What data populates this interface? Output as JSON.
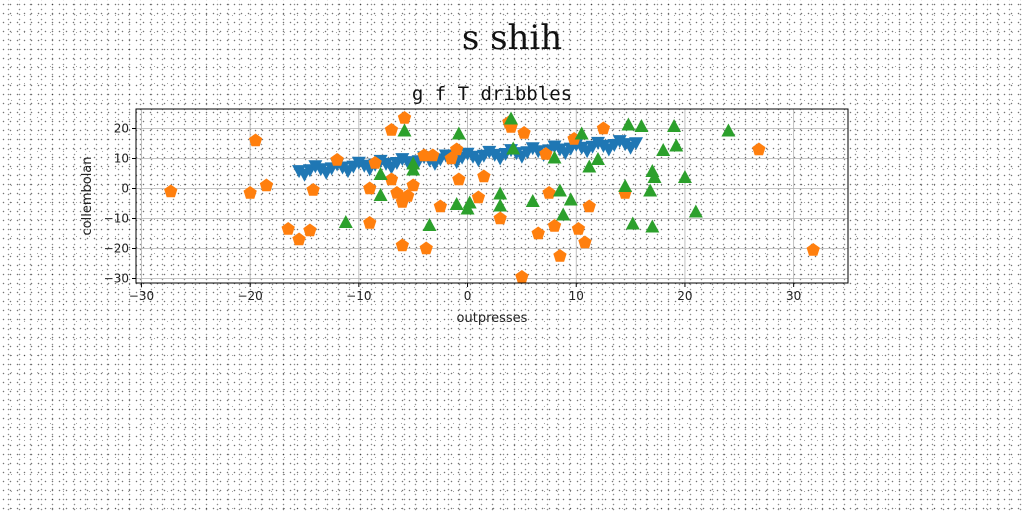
{
  "figure": {
    "suptitle": "s shih"
  },
  "chart_data": {
    "type": "scatter",
    "title": "g f T dribbles",
    "xlabel": "outpresses",
    "ylabel": "collembolan",
    "xlim": [
      -30.5,
      35
    ],
    "ylim": [
      -31.5,
      26.5
    ],
    "xticks": [
      -30,
      -20,
      -10,
      0,
      10,
      20,
      30
    ],
    "yticks": [
      -30,
      -20,
      -10,
      0,
      10,
      20
    ],
    "grid": true,
    "series": [
      {
        "marker": "triangle-down",
        "color": "#1f77b4",
        "points": [
          [
            -15.5,
            5.8
          ],
          [
            -14.5,
            6.1
          ],
          [
            -13.5,
            6.4
          ],
          [
            -12.5,
            6.7
          ],
          [
            -11.5,
            7.0
          ],
          [
            -10.5,
            7.3
          ],
          [
            -9.5,
            7.6
          ],
          [
            -8.5,
            7.9
          ],
          [
            -7.5,
            8.2
          ],
          [
            -6.5,
            8.5
          ],
          [
            -5.5,
            8.8
          ],
          [
            -4.5,
            9.1
          ],
          [
            -3.5,
            9.4
          ],
          [
            -2.5,
            9.7
          ],
          [
            -1.5,
            10.0
          ],
          [
            -0.5,
            10.3
          ],
          [
            0.5,
            10.6
          ],
          [
            1.5,
            10.9
          ],
          [
            2.5,
            11.2
          ],
          [
            3.5,
            11.5
          ],
          [
            4.5,
            11.8
          ],
          [
            5.5,
            12.1
          ],
          [
            6.5,
            12.4
          ],
          [
            7.5,
            12.7
          ],
          [
            8.5,
            13.0
          ],
          [
            9.5,
            13.3
          ],
          [
            10.5,
            13.6
          ],
          [
            11.5,
            13.9
          ],
          [
            12.5,
            14.2
          ],
          [
            13.5,
            14.5
          ],
          [
            14.5,
            14.8
          ],
          [
            15.5,
            15.1
          ],
          [
            -15.0,
            4.6
          ],
          [
            -13.0,
            5.2
          ],
          [
            -11.0,
            5.8
          ],
          [
            -9.0,
            6.4
          ],
          [
            -7.0,
            7.0
          ],
          [
            -5.0,
            7.6
          ],
          [
            -3.0,
            8.2
          ],
          [
            -1.0,
            8.8
          ],
          [
            1.0,
            9.4
          ],
          [
            3.0,
            10.0
          ],
          [
            5.0,
            10.6
          ],
          [
            7.0,
            11.2
          ],
          [
            9.0,
            11.8
          ],
          [
            11.0,
            12.4
          ],
          [
            13.0,
            13.0
          ],
          [
            15.0,
            13.6
          ],
          [
            -14.0,
            7.4
          ],
          [
            -12.0,
            8.0
          ],
          [
            -10.0,
            8.6
          ],
          [
            -8.0,
            9.2
          ],
          [
            -6.0,
            9.8
          ],
          [
            -4.0,
            10.4
          ],
          [
            -2.0,
            11.0
          ],
          [
            0.0,
            11.6
          ],
          [
            2.0,
            12.2
          ],
          [
            4.0,
            12.8
          ],
          [
            6.0,
            13.4
          ],
          [
            8.0,
            14.0
          ],
          [
            10.0,
            14.6
          ],
          [
            12.0,
            15.2
          ],
          [
            14.0,
            15.8
          ]
        ]
      },
      {
        "marker": "pentagon",
        "color": "#ff7f0e",
        "points": [
          [
            -27.3,
            -1.0
          ],
          [
            -20.0,
            -1.5
          ],
          [
            -19.5,
            16.0
          ],
          [
            -18.5,
            1.0
          ],
          [
            -16.5,
            -13.5
          ],
          [
            -15.5,
            -17.0
          ],
          [
            -14.5,
            -14.0
          ],
          [
            -14.2,
            -0.5
          ],
          [
            -12.0,
            9.5
          ],
          [
            -9.0,
            0.0
          ],
          [
            -9.0,
            -11.5
          ],
          [
            -8.5,
            8.5
          ],
          [
            -7.0,
            19.5
          ],
          [
            -7.0,
            3.0
          ],
          [
            -6.5,
            -1.5
          ],
          [
            -6.0,
            -4.5
          ],
          [
            -6.0,
            -19.0
          ],
          [
            -5.8,
            23.5
          ],
          [
            -5.5,
            -2.5
          ],
          [
            -5.0,
            1.0
          ],
          [
            -4.0,
            11.0
          ],
          [
            -3.8,
            -20.0
          ],
          [
            -3.2,
            11.0
          ],
          [
            -2.5,
            -6.0
          ],
          [
            -1.5,
            10.0
          ],
          [
            -1.0,
            13.0
          ],
          [
            -0.8,
            3.0
          ],
          [
            1.0,
            -3.0
          ],
          [
            1.5,
            4.0
          ],
          [
            3.0,
            -10.0
          ],
          [
            3.8,
            22.0
          ],
          [
            4.0,
            20.5
          ],
          [
            5.0,
            -29.5
          ],
          [
            5.2,
            18.5
          ],
          [
            6.5,
            -15.0
          ],
          [
            7.2,
            11.5
          ],
          [
            7.5,
            -1.5
          ],
          [
            8.0,
            -12.5
          ],
          [
            8.5,
            -22.5
          ],
          [
            9.8,
            16.5
          ],
          [
            10.2,
            -13.5
          ],
          [
            10.8,
            -18.0
          ],
          [
            11.2,
            -6.0
          ],
          [
            12.5,
            20.0
          ],
          [
            14.5,
            -1.5
          ],
          [
            26.8,
            13.0
          ],
          [
            31.8,
            -20.5
          ]
        ]
      },
      {
        "marker": "triangle-up",
        "color": "#2ca02c",
        "points": [
          [
            -11.2,
            -11.5
          ],
          [
            -8.0,
            4.5
          ],
          [
            -8.0,
            -2.5
          ],
          [
            -5.8,
            19.0
          ],
          [
            -5.0,
            8.0
          ],
          [
            -5.0,
            6.0
          ],
          [
            -3.5,
            -12.5
          ],
          [
            -1.0,
            -5.5
          ],
          [
            -0.8,
            18.0
          ],
          [
            0.0,
            -7.0
          ],
          [
            0.2,
            -5.0
          ],
          [
            3.0,
            -2.0
          ],
          [
            3.0,
            -6.0
          ],
          [
            4.0,
            23.0
          ],
          [
            4.2,
            13.0
          ],
          [
            6.0,
            -4.5
          ],
          [
            8.0,
            10.0
          ],
          [
            8.5,
            -1.0
          ],
          [
            8.8,
            -9.0
          ],
          [
            9.5,
            -4.0
          ],
          [
            10.5,
            18.0
          ],
          [
            11.2,
            7.0
          ],
          [
            12.0,
            9.5
          ],
          [
            14.5,
            0.5
          ],
          [
            14.8,
            21.0
          ],
          [
            15.2,
            -12.0
          ],
          [
            16.0,
            20.5
          ],
          [
            16.8,
            -1.0
          ],
          [
            17.0,
            5.5
          ],
          [
            17.2,
            3.5
          ],
          [
            17.0,
            -13.0
          ],
          [
            18.0,
            12.5
          ],
          [
            19.0,
            20.5
          ],
          [
            19.2,
            14.0
          ],
          [
            20.0,
            3.5
          ],
          [
            21.0,
            -8.0
          ],
          [
            24.0,
            19.0
          ]
        ]
      }
    ]
  }
}
